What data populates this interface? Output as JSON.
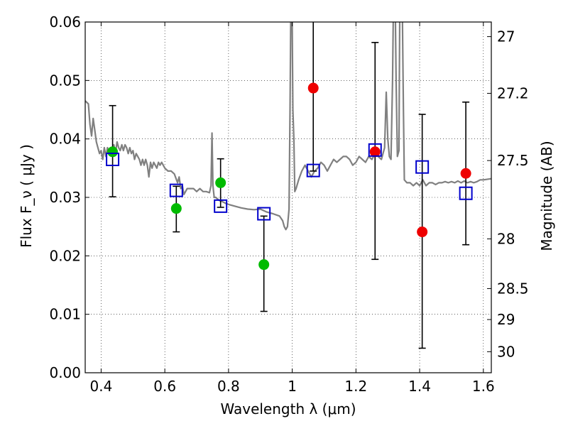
{
  "chart_data": {
    "type": "scatter",
    "xlabel": "Wavelength  λ (μm)",
    "ylabel": "Flux  F_ν  ( μJy )",
    "ylabel_right": "Magnitude (AB)",
    "xlim": [
      0.35,
      1.625
    ],
    "ylim": [
      0,
      0.06
    ],
    "x_ticks": [
      0.4,
      0.6,
      0.8,
      1.0,
      1.2,
      1.4,
      1.6
    ],
    "x_tick_labels": [
      "0.4",
      "0.6",
      "0.8",
      "1",
      "1.2",
      "1.4",
      "1.6"
    ],
    "y_ticks": [
      0,
      0.01,
      0.02,
      0.03,
      0.04,
      0.05,
      0.06
    ],
    "y_tick_labels": [
      "0.00",
      "0.01",
      "0.02",
      "0.03",
      "0.04",
      "0.05",
      "0.06"
    ],
    "right_ticks": [
      {
        "label": "27",
        "flux": 0.0575
      },
      {
        "label": "27.2",
        "flux": 0.0478
      },
      {
        "label": "27.5",
        "flux": 0.0363
      },
      {
        "label": "28",
        "flux": 0.0229
      },
      {
        "label": "28.5",
        "flux": 0.0144
      },
      {
        "label": "29",
        "flux": 0.0091
      },
      {
        "label": "30",
        "flux": 0.0036
      }
    ],
    "grid": true,
    "series": [
      {
        "marker": "line",
        "color": "#808080",
        "points": [
          [
            0.35,
            0.0465
          ],
          [
            0.36,
            0.046
          ],
          [
            0.365,
            0.0425
          ],
          [
            0.37,
            0.0405
          ],
          [
            0.375,
            0.0435
          ],
          [
            0.38,
            0.0415
          ],
          [
            0.385,
            0.0395
          ],
          [
            0.39,
            0.0385
          ],
          [
            0.395,
            0.0375
          ],
          [
            0.4,
            0.038
          ],
          [
            0.405,
            0.0365
          ],
          [
            0.41,
            0.0385
          ],
          [
            0.415,
            0.037
          ],
          [
            0.42,
            0.0385
          ],
          [
            0.425,
            0.0375
          ],
          [
            0.43,
            0.038
          ],
          [
            0.435,
            0.0385
          ],
          [
            0.44,
            0.039
          ],
          [
            0.445,
            0.0375
          ],
          [
            0.45,
            0.0395
          ],
          [
            0.455,
            0.0385
          ],
          [
            0.46,
            0.038
          ],
          [
            0.465,
            0.039
          ],
          [
            0.47,
            0.038
          ],
          [
            0.475,
            0.039
          ],
          [
            0.48,
            0.0385
          ],
          [
            0.485,
            0.0375
          ],
          [
            0.49,
            0.0385
          ],
          [
            0.495,
            0.0375
          ],
          [
            0.5,
            0.038
          ],
          [
            0.505,
            0.0365
          ],
          [
            0.51,
            0.0375
          ],
          [
            0.52,
            0.0365
          ],
          [
            0.525,
            0.0355
          ],
          [
            0.53,
            0.0365
          ],
          [
            0.535,
            0.0355
          ],
          [
            0.54,
            0.0365
          ],
          [
            0.545,
            0.0355
          ],
          [
            0.55,
            0.0335
          ],
          [
            0.555,
            0.036
          ],
          [
            0.56,
            0.035
          ],
          [
            0.565,
            0.036
          ],
          [
            0.57,
            0.0355
          ],
          [
            0.575,
            0.035
          ],
          [
            0.58,
            0.036
          ],
          [
            0.585,
            0.0355
          ],
          [
            0.59,
            0.036
          ],
          [
            0.6,
            0.035
          ],
          [
            0.61,
            0.0345
          ],
          [
            0.62,
            0.0345
          ],
          [
            0.63,
            0.034
          ],
          [
            0.64,
            0.0325
          ],
          [
            0.645,
            0.0335
          ],
          [
            0.65,
            0.0315
          ],
          [
            0.655,
            0.032
          ],
          [
            0.66,
            0.0305
          ],
          [
            0.665,
            0.031
          ],
          [
            0.67,
            0.0315
          ],
          [
            0.68,
            0.0315
          ],
          [
            0.69,
            0.0315
          ],
          [
            0.7,
            0.031
          ],
          [
            0.71,
            0.0315
          ],
          [
            0.72,
            0.031
          ],
          [
            0.73,
            0.031
          ],
          [
            0.74,
            0.0308
          ],
          [
            0.745,
            0.032
          ],
          [
            0.748,
            0.041
          ],
          [
            0.751,
            0.032
          ],
          [
            0.755,
            0.03
          ],
          [
            0.76,
            0.03
          ],
          [
            0.77,
            0.0295
          ],
          [
            0.78,
            0.0293
          ],
          [
            0.79,
            0.029
          ],
          [
            0.8,
            0.0288
          ],
          [
            0.82,
            0.0285
          ],
          [
            0.84,
            0.0282
          ],
          [
            0.86,
            0.028
          ],
          [
            0.88,
            0.0279
          ],
          [
            0.9,
            0.028
          ],
          [
            0.92,
            0.0275
          ],
          [
            0.94,
            0.0272
          ],
          [
            0.96,
            0.0268
          ],
          [
            0.97,
            0.026
          ],
          [
            0.975,
            0.025
          ],
          [
            0.98,
            0.0245
          ],
          [
            0.985,
            0.025
          ],
          [
            0.99,
            0.028
          ],
          [
            0.993,
            0.045
          ],
          [
            0.996,
            0.065
          ],
          [
            0.999,
            0.065
          ],
          [
            1.002,
            0.045
          ],
          [
            1.005,
            0.04
          ],
          [
            1.008,
            0.031
          ],
          [
            1.012,
            0.0315
          ],
          [
            1.02,
            0.033
          ],
          [
            1.03,
            0.0345
          ],
          [
            1.04,
            0.0355
          ],
          [
            1.05,
            0.0345
          ],
          [
            1.06,
            0.0335
          ],
          [
            1.07,
            0.0345
          ],
          [
            1.08,
            0.035
          ],
          [
            1.09,
            0.036
          ],
          [
            1.1,
            0.0355
          ],
          [
            1.11,
            0.0345
          ],
          [
            1.12,
            0.0355
          ],
          [
            1.13,
            0.0365
          ],
          [
            1.14,
            0.036
          ],
          [
            1.15,
            0.0365
          ],
          [
            1.16,
            0.037
          ],
          [
            1.17,
            0.037
          ],
          [
            1.18,
            0.0365
          ],
          [
            1.19,
            0.0355
          ],
          [
            1.2,
            0.036
          ],
          [
            1.21,
            0.037
          ],
          [
            1.22,
            0.0365
          ],
          [
            1.23,
            0.036
          ],
          [
            1.24,
            0.037
          ],
          [
            1.25,
            0.0365
          ],
          [
            1.26,
            0.0375
          ],
          [
            1.27,
            0.037
          ],
          [
            1.28,
            0.0365
          ],
          [
            1.29,
            0.0385
          ],
          [
            1.295,
            0.048
          ],
          [
            1.3,
            0.04
          ],
          [
            1.305,
            0.037
          ],
          [
            1.31,
            0.0365
          ],
          [
            1.315,
            0.05
          ],
          [
            1.318,
            0.065
          ],
          [
            1.323,
            0.065
          ],
          [
            1.326,
            0.05
          ],
          [
            1.33,
            0.037
          ],
          [
            1.335,
            0.038
          ],
          [
            1.338,
            0.065
          ],
          [
            1.345,
            0.065
          ],
          [
            1.349,
            0.045
          ],
          [
            1.352,
            0.033
          ],
          [
            1.36,
            0.0325
          ],
          [
            1.37,
            0.0325
          ],
          [
            1.38,
            0.032
          ],
          [
            1.39,
            0.0325
          ],
          [
            1.4,
            0.032
          ],
          [
            1.41,
            0.033
          ],
          [
            1.42,
            0.032
          ],
          [
            1.43,
            0.0325
          ],
          [
            1.44,
            0.0325
          ],
          [
            1.45,
            0.0322
          ],
          [
            1.46,
            0.0325
          ],
          [
            1.47,
            0.0325
          ],
          [
            1.48,
            0.0327
          ],
          [
            1.49,
            0.0325
          ],
          [
            1.5,
            0.0327
          ],
          [
            1.51,
            0.0325
          ],
          [
            1.52,
            0.0328
          ],
          [
            1.53,
            0.0325
          ],
          [
            1.54,
            0.0328
          ],
          [
            1.55,
            0.0325
          ],
          [
            1.56,
            0.0327
          ],
          [
            1.57,
            0.0325
          ],
          [
            1.58,
            0.0327
          ],
          [
            1.59,
            0.033
          ],
          [
            1.6,
            0.033
          ],
          [
            1.625,
            0.0332
          ]
        ]
      },
      {
        "marker": "circle",
        "color": "#00bb00",
        "points": [
          {
            "x": 0.436,
            "y": 0.0378
          },
          {
            "x": 0.636,
            "y": 0.0281
          },
          {
            "x": 0.775,
            "y": 0.0325
          },
          {
            "x": 0.911,
            "y": 0.0185,
            "err_lo": 0.0105,
            "err_hi": 0.0268
          }
        ]
      },
      {
        "marker": "circle",
        "color": "#ee0000",
        "points": [
          {
            "x": 1.066,
            "y": 0.0487,
            "err_lo": 0.0345,
            "err_hi": 0.065
          },
          {
            "x": 1.26,
            "y": 0.0378,
            "err_lo": 0.0194,
            "err_hi": 0.0565
          },
          {
            "x": 1.408,
            "y": 0.0241,
            "err_lo": 0.0042,
            "err_hi": 0.0442
          },
          {
            "x": 1.545,
            "y": 0.0341,
            "err_lo": 0.0219,
            "err_hi": 0.0463
          }
        ]
      },
      {
        "marker": "square",
        "color": "#0000cc",
        "points": [
          {
            "x": 0.436,
            "y": 0.0365,
            "err_lo": 0.0301,
            "err_hi": 0.0457
          },
          {
            "x": 0.636,
            "y": 0.0312,
            "err_lo": 0.0241,
            "err_hi": 0.0319
          },
          {
            "x": 0.775,
            "y": 0.0285,
            "err_lo": 0.0283,
            "err_hi": 0.0366
          },
          {
            "x": 0.911,
            "y": 0.0272
          },
          {
            "x": 1.066,
            "y": 0.0346
          },
          {
            "x": 1.26,
            "y": 0.0381
          },
          {
            "x": 1.408,
            "y": 0.0352
          },
          {
            "x": 1.545,
            "y": 0.0307
          }
        ]
      }
    ]
  }
}
